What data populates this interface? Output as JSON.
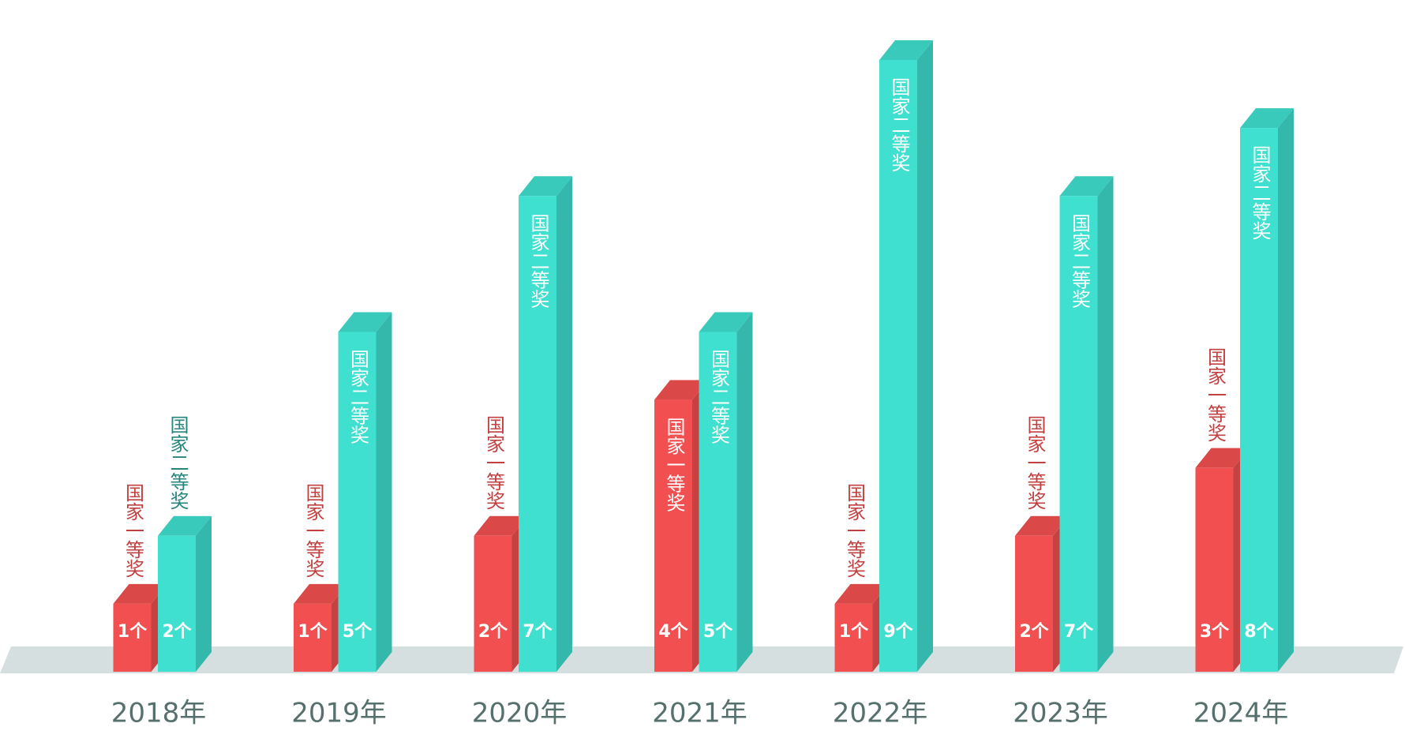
{
  "chart_data": {
    "type": "bar3d",
    "categories": [
      "2018年",
      "2019年",
      "2020年",
      "2021年",
      "2022年",
      "2023年",
      "2024年"
    ],
    "series": [
      {
        "name": "国家一等奖",
        "color": "#f25050",
        "values": [
          1,
          1,
          2,
          4,
          1,
          2,
          3
        ],
        "value_labels": [
          "1个",
          "1个",
          "2个",
          "4个",
          "1个",
          "2个",
          "3个"
        ]
      },
      {
        "name": "国家二等奖",
        "color": "#40e0d0",
        "values": [
          2,
          5,
          7,
          5,
          9,
          7,
          8
        ],
        "value_labels": [
          "2个",
          "5个",
          "7个",
          "5个",
          "9个",
          "7个",
          "8个"
        ]
      }
    ]
  }
}
